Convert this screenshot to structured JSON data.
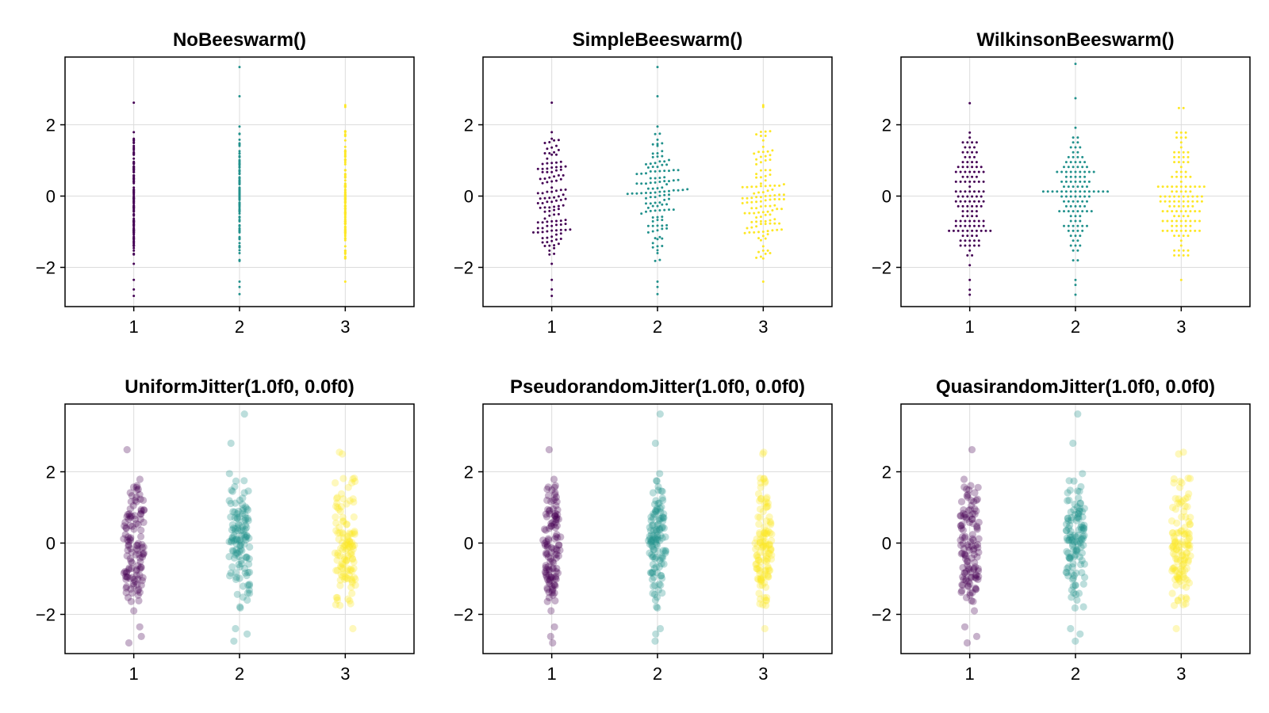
{
  "colors": {
    "series": [
      "#440154",
      "#21918c",
      "#fde725"
    ],
    "grid": "#dcdcdc",
    "frame": "#000000",
    "background": "#ffffff"
  },
  "chart_data": [
    {
      "type": "scatter",
      "title": "NoBeeswarm()",
      "xticks": [
        "1",
        "2",
        "3"
      ],
      "yticks": [
        "−2",
        "0",
        "2"
      ],
      "xlim": [
        0.35,
        3.65
      ],
      "ylim": [
        -3.1,
        3.9
      ],
      "marker": {
        "style": "small-dot",
        "alpha": 1.0
      },
      "layout": "beeswarm-none",
      "series": [
        {
          "x": 1,
          "values": [
            2.62,
            -2.8,
            -2.62,
            -2.35,
            -1.9
          ]
        },
        {
          "x": 2,
          "values": [
            3.62,
            2.8,
            1.95,
            -2.4,
            -2.55,
            -2.75
          ]
        },
        {
          "x": 3,
          "values": [
            2.55,
            2.5,
            1.82,
            -2.4,
            -1.7
          ]
        }
      ]
    },
    {
      "type": "scatter",
      "title": "SimpleBeeswarm()",
      "xticks": [
        "1",
        "2",
        "3"
      ],
      "yticks": [
        "−2",
        "0",
        "2"
      ],
      "xlim": [
        0.35,
        3.65
      ],
      "ylim": [
        -3.1,
        3.9
      ],
      "marker": {
        "style": "small-dot",
        "alpha": 1.0
      },
      "layout": "beeswarm-simple",
      "series": [
        {
          "x": 1,
          "values": [
            2.62,
            -2.8,
            -2.62,
            -2.35,
            -1.9
          ]
        },
        {
          "x": 2,
          "values": [
            3.62,
            2.8,
            1.95,
            -2.4,
            -2.55,
            -2.75
          ]
        },
        {
          "x": 3,
          "values": [
            2.55,
            2.5,
            1.82,
            -2.4,
            -1.7
          ]
        }
      ]
    },
    {
      "type": "scatter",
      "title": "WilkinsonBeeswarm()",
      "xticks": [
        "1",
        "2",
        "3"
      ],
      "yticks": [
        "−2",
        "0",
        "2"
      ],
      "xlim": [
        0.35,
        3.65
      ],
      "ylim": [
        -3.1,
        3.9
      ],
      "marker": {
        "style": "small-dot",
        "alpha": 1.0
      },
      "layout": "beeswarm-wilkinson",
      "series": [
        {
          "x": 1,
          "values": [
            2.62,
            -2.8,
            -2.62,
            -2.35,
            -1.9
          ]
        },
        {
          "x": 2,
          "values": [
            3.62,
            2.8,
            1.95,
            -2.4,
            -2.55,
            -2.75
          ]
        },
        {
          "x": 3,
          "values": [
            2.55,
            2.5,
            1.82,
            -2.4,
            -1.7
          ]
        }
      ]
    },
    {
      "type": "scatter",
      "title": "UniformJitter(1.0f0, 0.0f0)",
      "xticks": [
        "1",
        "2",
        "3"
      ],
      "yticks": [
        "−2",
        "0",
        "2"
      ],
      "xlim": [
        0.35,
        3.65
      ],
      "ylim": [
        -3.1,
        3.9
      ],
      "marker": {
        "style": "large-dot",
        "alpha": 0.3
      },
      "layout": "jitter-uniform",
      "series": [
        {
          "x": 1,
          "values": [
            2.62,
            -2.8,
            -2.62,
            -2.35,
            -1.9
          ]
        },
        {
          "x": 2,
          "values": [
            3.62,
            2.8,
            1.95,
            -2.4,
            -2.55,
            -2.75
          ]
        },
        {
          "x": 3,
          "values": [
            2.55,
            2.5,
            1.82,
            -2.4,
            -1.7
          ]
        }
      ]
    },
    {
      "type": "scatter",
      "title": "PseudorandomJitter(1.0f0, 0.0f0)",
      "xticks": [
        "1",
        "2",
        "3"
      ],
      "yticks": [
        "−2",
        "0",
        "2"
      ],
      "xlim": [
        0.35,
        3.65
      ],
      "ylim": [
        -3.1,
        3.9
      ],
      "marker": {
        "style": "large-dot",
        "alpha": 0.3
      },
      "layout": "jitter-pseudorandom",
      "series": [
        {
          "x": 1,
          "values": [
            2.62,
            -2.8,
            -2.62,
            -2.35,
            -1.9
          ]
        },
        {
          "x": 2,
          "values": [
            3.62,
            2.8,
            1.95,
            -2.4,
            -2.55,
            -2.75
          ]
        },
        {
          "x": 3,
          "values": [
            2.55,
            2.5,
            1.82,
            -2.4,
            -1.7
          ]
        }
      ]
    },
    {
      "type": "scatter",
      "title": "QuasirandomJitter(1.0f0, 0.0f0)",
      "xticks": [
        "1",
        "2",
        "3"
      ],
      "yticks": [
        "−2",
        "0",
        "2"
      ],
      "xlim": [
        0.35,
        3.65
      ],
      "ylim": [
        -3.1,
        3.9
      ],
      "marker": {
        "style": "large-dot",
        "alpha": 0.3
      },
      "layout": "jitter-quasirandom",
      "series": [
        {
          "x": 1,
          "values": [
            2.62,
            -2.8,
            -2.62,
            -2.35,
            -1.9
          ]
        },
        {
          "x": 2,
          "values": [
            3.62,
            2.8,
            1.95,
            -2.4,
            -2.55,
            -2.75
          ]
        },
        {
          "x": 3,
          "values": [
            2.55,
            2.5,
            1.82,
            -2.4,
            -1.7
          ]
        }
      ]
    }
  ]
}
